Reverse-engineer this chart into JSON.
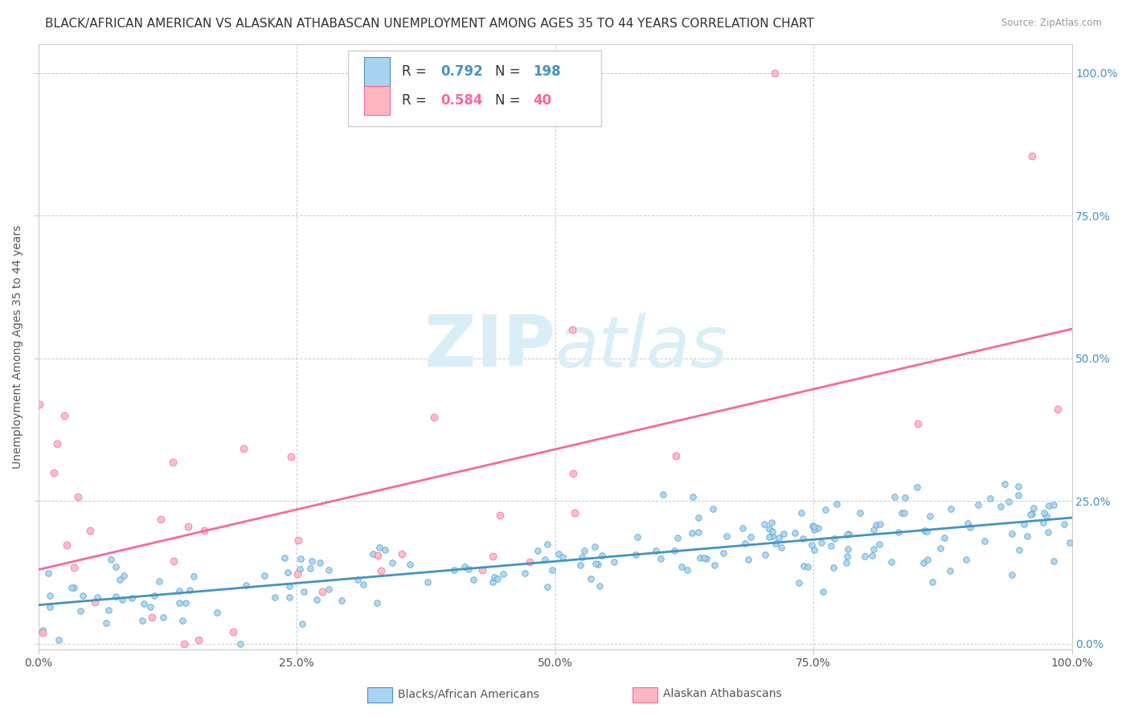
{
  "title": "BLACK/AFRICAN AMERICAN VS ALASKAN ATHABASCAN UNEMPLOYMENT AMONG AGES 35 TO 44 YEARS CORRELATION CHART",
  "source": "Source: ZipAtlas.com",
  "ylabel": "Unemployment Among Ages 35 to 44 years",
  "xlim": [
    0.0,
    1.0
  ],
  "ylim": [
    -0.01,
    1.05
  ],
  "xtick_labels": [
    "0.0%",
    "25.0%",
    "50.0%",
    "75.0%",
    "100.0%"
  ],
  "xtick_positions": [
    0.0,
    0.25,
    0.5,
    0.75,
    1.0
  ],
  "ytick_positions": [
    0.0,
    0.25,
    0.5,
    0.75,
    1.0
  ],
  "right_ytick_labels": [
    "0.0%",
    "25.0%",
    "50.0%",
    "75.0%",
    "100.0%"
  ],
  "blue_R": 0.792,
  "blue_N": 198,
  "pink_R": 0.584,
  "pink_N": 40,
  "blue_scatter_color": "#a8d4f0",
  "pink_scatter_color": "#ffb6c1",
  "blue_line_color": "#4393c3",
  "pink_line_color": "#f768a1",
  "watermark_zip": "ZIP",
  "watermark_atlas": "atlas",
  "watermark_color": "#daeef8",
  "legend_label_blue": "Blacks/African Americans",
  "legend_label_pink": "Alaskan Athabascans",
  "background_color": "#ffffff",
  "grid_color": "#cccccc",
  "title_fontsize": 11,
  "axis_fontsize": 10,
  "right_axis_color": "#4393c3"
}
